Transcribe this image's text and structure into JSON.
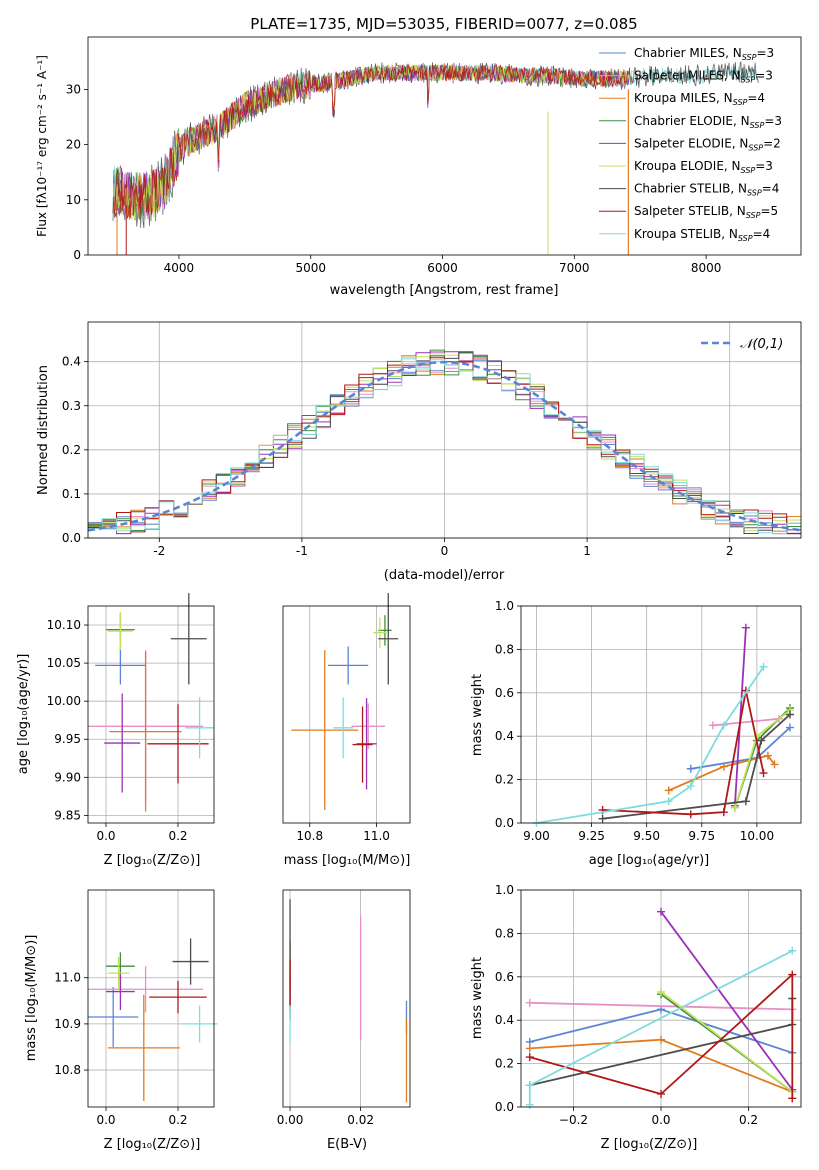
{
  "chart_data": [
    {
      "id": "spectrum",
      "type": "line",
      "title": "PLATE=1735, MJD=53035, FIBERID=0077, z=0.085",
      "xlabel": "wavelength [Angstrom, rest frame]",
      "ylabel": "Flux [fλ10⁻¹⁷ erg cm⁻² s⁻¹ A⁻¹]",
      "xlim": [
        3310,
        8720
      ],
      "ylim": [
        0,
        39.5
      ],
      "xticks": [
        4000,
        5000,
        6000,
        7000,
        8000
      ],
      "yticks": [
        0,
        10,
        20,
        30
      ],
      "legend_position": "right",
      "continuum": [
        [
          3500,
          12
        ],
        [
          3600,
          11
        ],
        [
          3700,
          10.5
        ],
        [
          3800,
          11
        ],
        [
          3900,
          13
        ],
        [
          4000,
          19
        ],
        [
          4100,
          21
        ],
        [
          4200,
          22
        ],
        [
          4300,
          23
        ],
        [
          4400,
          25
        ],
        [
          4500,
          27
        ],
        [
          4600,
          28
        ],
        [
          4700,
          29
        ],
        [
          4800,
          30
        ],
        [
          4900,
          30.5
        ],
        [
          5000,
          31
        ],
        [
          5100,
          31
        ],
        [
          5200,
          31.5
        ],
        [
          5300,
          32
        ],
        [
          5400,
          32.5
        ],
        [
          5500,
          33
        ],
        [
          5600,
          33
        ],
        [
          5700,
          33
        ],
        [
          5800,
          33
        ],
        [
          5900,
          33
        ],
        [
          6000,
          33
        ],
        [
          6200,
          33
        ],
        [
          6400,
          33
        ],
        [
          6600,
          32.5
        ],
        [
          6800,
          32.5
        ],
        [
          7000,
          32
        ],
        [
          7200,
          32
        ],
        [
          7400,
          32
        ],
        [
          7600,
          32.5
        ],
        [
          7800,
          32.5
        ],
        [
          8000,
          32.5
        ],
        [
          8200,
          33
        ],
        [
          8400,
          33
        ]
      ],
      "series": [
        {
          "name": "Chabrier MILES, N_SSP=3",
          "nssp": "3",
          "label": "Chabrier MILES, N",
          "color": "#5b84d6"
        },
        {
          "name": "Salpeter MILES, N_SSP=3",
          "nssp": "3",
          "label": "Salpeter MILES, N",
          "color": "#e88fc8"
        },
        {
          "name": "Kroupa MILES, N_SSP=4",
          "nssp": "4",
          "label": "Kroupa MILES, N",
          "color": "#e07b20"
        },
        {
          "name": "Chabrier ELODIE, N_SSP=3",
          "nssp": "3",
          "label": "Chabrier ELODIE, N",
          "color": "#3f8f3f"
        },
        {
          "name": "Salpeter ELODIE, N_SSP=2",
          "nssp": "2",
          "label": "Salpeter ELODIE, N",
          "color": "#9b30b8"
        },
        {
          "name": "Kroupa ELODIE, N_SSP=3",
          "nssp": "3",
          "label": "Kroupa ELODIE, N",
          "color": "#c3e05a"
        },
        {
          "name": "Chabrier STELIB, N_SSP=4",
          "nssp": "4",
          "label": "Chabrier STELIB, N",
          "color": "#4d4d4d"
        },
        {
          "name": "Salpeter STELIB, N_SSP=5",
          "nssp": "5",
          "label": "Salpeter STELIB, N",
          "color": "#b01818"
        },
        {
          "name": "Kroupa STELIB, N_SSP=4",
          "nssp": "4",
          "label": "Kroupa STELIB, N",
          "color": "#80dcdc"
        }
      ]
    },
    {
      "id": "residuals",
      "type": "line",
      "xlabel": "(data-model)/error",
      "ylabel": "Normed distribution",
      "xlim": [
        -2.5,
        2.5
      ],
      "ylim": [
        0,
        0.49
      ],
      "xticks": [
        -2,
        -1,
        0,
        1,
        2
      ],
      "yticks": [
        0.0,
        0.1,
        0.2,
        0.3,
        0.4
      ],
      "reference": {
        "name": "𝒩(0,1)",
        "mean": 0,
        "sigma": 1
      },
      "grid": true
    },
    {
      "id": "age_vs_Z",
      "type": "scatter",
      "xlabel": "Z [log₁₀(Z/Z⊙)]",
      "ylabel": "age  [log₁₀(age/yr)]",
      "xlim": [
        -0.05,
        0.3
      ],
      "ylim": [
        9.84,
        10.125
      ],
      "xticks": [
        0.0,
        0.2
      ],
      "yticks": [
        9.85,
        9.9,
        9.95,
        10.0,
        10.05,
        10.1
      ],
      "points": [
        {
          "x": 0.04,
          "y": 10.047,
          "xerr": 0.07,
          "yerr": 0.025,
          "series": 0
        },
        {
          "x": 0.11,
          "y": 9.967,
          "xerr": 0.16,
          "yerr": 0.1,
          "series": 1
        },
        {
          "x": 0.11,
          "y": 9.96,
          "xerr": 0.1,
          "yerr": 0.105,
          "series": 2
        },
        {
          "x": 0.04,
          "y": 10.094,
          "xerr": 0.04,
          "yerr": 0.02,
          "series": 3
        },
        {
          "x": 0.045,
          "y": 9.945,
          "xerr": 0.05,
          "yerr": 0.065,
          "series": 4
        },
        {
          "x": 0.04,
          "y": 10.092,
          "xerr": 0.035,
          "yerr": 0.025,
          "series": 5
        },
        {
          "x": 0.23,
          "y": 10.082,
          "xerr": 0.05,
          "yerr": 0.06,
          "series": 6
        },
        {
          "x": 0.2,
          "y": 9.944,
          "xerr": 0.085,
          "yerr": 0.052,
          "series": 7
        },
        {
          "x": 0.26,
          "y": 9.965,
          "xerr": 0.04,
          "yerr": 0.04,
          "series": 8
        }
      ]
    },
    {
      "id": "age_vs_mass",
      "type": "scatter",
      "xlabel": "mass [log₁₀(M/M⊙)]",
      "xlim": [
        10.72,
        11.1
      ],
      "ylim": [
        9.84,
        10.125
      ],
      "xticks": [
        10.8,
        11.0
      ],
      "points": [
        {
          "x": 10.915,
          "y": 10.047,
          "xerr": 0.06,
          "yerr": 0.025,
          "series": 0
        },
        {
          "x": 10.975,
          "y": 9.967,
          "xerr": 0.05,
          "yerr": 0.03,
          "series": 1
        },
        {
          "x": 10.845,
          "y": 9.962,
          "xerr": 0.1,
          "yerr": 0.105,
          "series": 2
        },
        {
          "x": 11.025,
          "y": 10.093,
          "xerr": 0.02,
          "yerr": 0.02,
          "series": 3
        },
        {
          "x": 10.97,
          "y": 9.944,
          "xerr": 0.03,
          "yerr": 0.06,
          "series": 4
        },
        {
          "x": 11.01,
          "y": 10.09,
          "xerr": 0.02,
          "yerr": 0.02,
          "series": 5
        },
        {
          "x": 11.035,
          "y": 10.082,
          "xerr": 0.03,
          "yerr": 0.06,
          "series": 6
        },
        {
          "x": 10.958,
          "y": 9.943,
          "xerr": 0.03,
          "yerr": 0.05,
          "series": 7
        },
        {
          "x": 10.9,
          "y": 9.965,
          "xerr": 0.03,
          "yerr": 0.04,
          "series": 8
        }
      ]
    },
    {
      "id": "weight_vs_age",
      "type": "line",
      "xlabel": "age  [log₁₀(age/yr)]",
      "ylabel": "mass weight",
      "xlim": [
        8.93,
        10.2
      ],
      "ylim": [
        0,
        1
      ],
      "xticks": [
        9.0,
        9.25,
        9.5,
        9.75,
        10.0
      ],
      "yticks": [
        0.0,
        0.2,
        0.4,
        0.6,
        0.8,
        1.0
      ],
      "grid": true,
      "series": [
        {
          "series": 0,
          "points": [
            [
              9.7,
              0.25
            ],
            [
              10.0,
              0.3
            ],
            [
              10.15,
              0.44
            ]
          ]
        },
        {
          "series": 1,
          "points": [
            [
              9.8,
              0.45
            ],
            [
              10.1,
              0.48
            ]
          ]
        },
        {
          "series": 2,
          "points": [
            [
              9.6,
              0.15
            ],
            [
              9.85,
              0.26
            ],
            [
              10.05,
              0.31
            ],
            [
              10.08,
              0.27
            ]
          ]
        },
        {
          "series": 3,
          "points": [
            [
              9.9,
              0.07
            ],
            [
              10.0,
              0.38
            ],
            [
              10.15,
              0.53
            ]
          ]
        },
        {
          "series": 4,
          "points": [
            [
              9.9,
              0.08
            ],
            [
              9.95,
              0.9
            ]
          ]
        },
        {
          "series": 5,
          "points": [
            [
              9.9,
              0.07
            ],
            [
              10.0,
              0.4
            ],
            [
              10.15,
              0.52
            ]
          ]
        },
        {
          "series": 6,
          "points": [
            [
              9.3,
              0.02
            ],
            [
              9.95,
              0.1
            ],
            [
              10.02,
              0.38
            ],
            [
              10.15,
              0.5
            ]
          ]
        },
        {
          "series": 7,
          "points": [
            [
              9.3,
              0.06
            ],
            [
              9.7,
              0.04
            ],
            [
              9.85,
              0.05
            ],
            [
              9.95,
              0.61
            ],
            [
              10.03,
              0.23
            ]
          ]
        },
        {
          "series": 8,
          "points": [
            [
              9.0,
              0.0
            ],
            [
              9.6,
              0.1
            ],
            [
              9.7,
              0.17
            ],
            [
              9.85,
              0.45
            ],
            [
              10.03,
              0.72
            ]
          ]
        }
      ]
    },
    {
      "id": "mass_vs_Z",
      "type": "scatter",
      "xlabel": "Z [log₁₀(Z/Z⊙)]",
      "ylabel": "mass [log₁₀(M/M⊙)]",
      "xlim": [
        -0.05,
        0.3
      ],
      "ylim": [
        10.72,
        11.19
      ],
      "xticks": [
        0.0,
        0.2
      ],
      "yticks": [
        10.8,
        10.9,
        11.0
      ],
      "points": [
        {
          "x": 0.02,
          "y": 10.915,
          "xerr": 0.07,
          "yerr": 0.065,
          "series": 0
        },
        {
          "x": 0.11,
          "y": 10.975,
          "xerr": 0.16,
          "yerr": 0.05,
          "series": 1
        },
        {
          "x": 0.105,
          "y": 10.848,
          "xerr": 0.1,
          "yerr": 0.115,
          "series": 2
        },
        {
          "x": 0.04,
          "y": 11.025,
          "xerr": 0.04,
          "yerr": 0.03,
          "series": 3
        },
        {
          "x": 0.04,
          "y": 10.97,
          "xerr": 0.04,
          "yerr": 0.04,
          "series": 4
        },
        {
          "x": 0.035,
          "y": 11.01,
          "xerr": 0.03,
          "yerr": 0.035,
          "series": 5
        },
        {
          "x": 0.235,
          "y": 11.035,
          "xerr": 0.05,
          "yerr": 0.05,
          "series": 6
        },
        {
          "x": 0.2,
          "y": 10.958,
          "xerr": 0.08,
          "yerr": 0.035,
          "series": 7
        },
        {
          "x": 0.26,
          "y": 10.9,
          "xerr": 0.05,
          "yerr": 0.04,
          "series": 8
        }
      ]
    },
    {
      "id": "mass_vs_ebv",
      "type": "scatter",
      "xlabel": "E(B-V)",
      "xlim": [
        -0.002,
        0.034
      ],
      "ylim": [
        10.72,
        11.19
      ],
      "xticks": [
        0.0,
        0.02
      ],
      "points": [
        {
          "x": 0.033,
          "y": 10.915,
          "yerr": 0.035,
          "series": 0
        },
        {
          "x": 0.02,
          "y": 11.0,
          "yerr": 0.135,
          "series": 1
        },
        {
          "x": 0.033,
          "y": 10.82,
          "yerr": 0.09,
          "series": 2
        },
        {
          "x": 0.0,
          "y": 11.03,
          "yerr": 0.05,
          "series": 3
        },
        {
          "x": 0.0,
          "y": 10.97,
          "yerr": 0.04,
          "series": 4
        },
        {
          "x": 0.0,
          "y": 11.02,
          "yerr": 0.04,
          "series": 5
        },
        {
          "x": 0.0,
          "y": 11.04,
          "yerr": 0.13,
          "series": 6
        },
        {
          "x": 0.0,
          "y": 10.99,
          "yerr": 0.05,
          "series": 7
        },
        {
          "x": 0.0,
          "y": 10.9,
          "yerr": 0.04,
          "series": 8
        }
      ]
    },
    {
      "id": "weight_vs_Z",
      "type": "line",
      "xlabel": "Z [log₁₀(Z/Z⊙)]",
      "ylabel": "mass weight",
      "xlim": [
        -0.32,
        0.32
      ],
      "ylim": [
        0,
        1
      ],
      "xticks": [
        -0.2,
        0.0,
        0.2
      ],
      "yticks": [
        0.0,
        0.2,
        0.4,
        0.6,
        0.8,
        1.0
      ],
      "grid": true,
      "series": [
        {
          "series": 0,
          "points": [
            [
              -0.3,
              0.3
            ],
            [
              0.0,
              0.45
            ],
            [
              0.3,
              0.25
            ]
          ]
        },
        {
          "series": 1,
          "points": [
            [
              -0.3,
              0.48
            ],
            [
              0.3,
              0.45
            ]
          ]
        },
        {
          "series": 2,
          "points": [
            [
              -0.3,
              0.27
            ],
            [
              0.0,
              0.31
            ],
            [
              0.3,
              0.07
            ]
          ]
        },
        {
          "series": 3,
          "points": [
            [
              0.0,
              0.52
            ],
            [
              0.3,
              0.07
            ]
          ]
        },
        {
          "series": 4,
          "points": [
            [
              0.0,
              0.9
            ],
            [
              0.3,
              0.08
            ]
          ]
        },
        {
          "series": 5,
          "points": [
            [
              0.0,
              0.53
            ],
            [
              0.3,
              0.07
            ]
          ]
        },
        {
          "series": 6,
          "points": [
            [
              -0.3,
              0.1
            ],
            [
              0.3,
              0.38
            ],
            [
              0.3,
              0.5
            ]
          ]
        },
        {
          "series": 7,
          "points": [
            [
              -0.3,
              0.23
            ],
            [
              0.0,
              0.06
            ],
            [
              0.3,
              0.61
            ],
            [
              0.3,
              0.04
            ]
          ]
        },
        {
          "series": 8,
          "points": [
            [
              -0.3,
              0.01
            ],
            [
              -0.3,
              0.1
            ],
            [
              0.3,
              0.72
            ]
          ]
        }
      ]
    }
  ]
}
